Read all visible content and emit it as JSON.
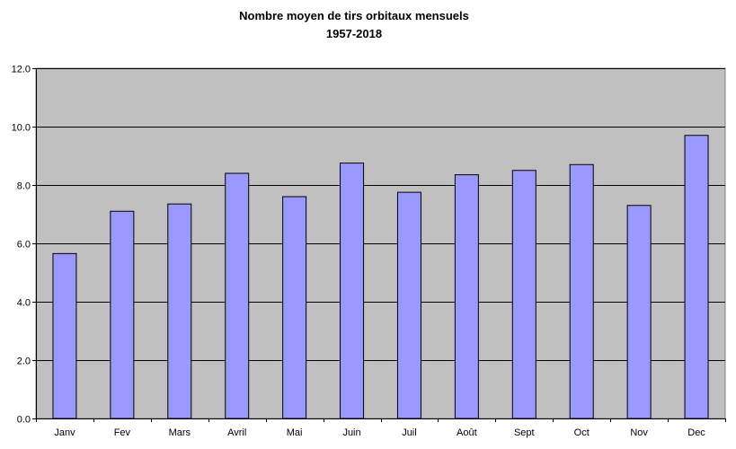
{
  "chart_data": {
    "type": "bar",
    "title": "Nombre moyen de tirs orbitaux mensuels",
    "subtitle": "1957-2018",
    "xlabel": "",
    "ylabel": "",
    "categories": [
      "Janv",
      "Fev",
      "Mars",
      "Avril",
      "Mai",
      "Juin",
      "Juil",
      "Août",
      "Sept",
      "Oct",
      "Nov",
      "Dec"
    ],
    "values": [
      5.65,
      7.1,
      7.35,
      8.4,
      7.6,
      8.75,
      7.75,
      8.35,
      8.5,
      8.7,
      7.3,
      9.7
    ],
    "ylim": [
      0,
      12
    ],
    "yticks": [
      "0.0",
      "2.0",
      "4.0",
      "6.0",
      "8.0",
      "10.0",
      "12.0"
    ],
    "grid": true,
    "legend": "none",
    "colors": {
      "bar_fill": "#9999ff",
      "bar_stroke": "#000000",
      "plot_background": "#c0c0c0",
      "gridline": "#000000"
    }
  }
}
